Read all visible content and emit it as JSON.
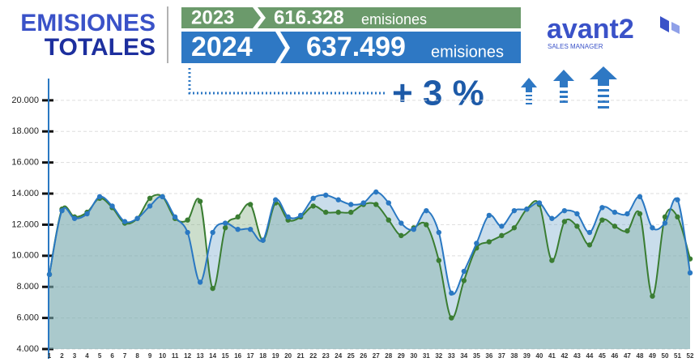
{
  "header": {
    "title_line1": "EMISIONES",
    "title_line2": "TOTALES",
    "year_prev": "2023",
    "total_prev": "616.328",
    "unit_prev": "emisiones",
    "year_curr": "2024",
    "total_curr": "637.499",
    "unit_curr": "emisiones",
    "change": "+ 3 %",
    "logo": "avant2",
    "logo_sub": "SALES MANAGER"
  },
  "chart_data": {
    "type": "area",
    "categories": [
      "1",
      "2",
      "3",
      "4",
      "5",
      "6",
      "7",
      "8",
      "9",
      "10",
      "11",
      "12",
      "13",
      "14",
      "15",
      "16",
      "17",
      "18",
      "19",
      "20",
      "21",
      "22",
      "23",
      "24",
      "25",
      "26",
      "27",
      "28",
      "29",
      "30",
      "31",
      "32",
      "33",
      "34",
      "35",
      "36",
      "37",
      "38",
      "39",
      "40",
      "41",
      "42",
      "43",
      "44",
      "45",
      "46",
      "47",
      "48",
      "49",
      "50",
      "51",
      "52"
    ],
    "series": [
      {
        "name": "2023",
        "color": "#3a7d32",
        "values": [
          8800,
          13000,
          12500,
          12800,
          13700,
          13100,
          12100,
          12400,
          13700,
          13800,
          12400,
          12300,
          13500,
          7900,
          11800,
          12500,
          13300,
          11000,
          13400,
          12300,
          12500,
          13200,
          12800,
          12800,
          12800,
          13300,
          13300,
          12300,
          11300,
          11800,
          12000,
          9700,
          6000,
          8400,
          10500,
          10900,
          11300,
          11800,
          13000,
          13300,
          9700,
          12200,
          11900,
          10700,
          12300,
          11900,
          11600,
          12700,
          7400,
          12500,
          12500,
          9800
        ]
      },
      {
        "name": "2024",
        "color": "#2a78c2",
        "values": [
          8800,
          12900,
          12400,
          12700,
          13800,
          13200,
          12200,
          12400,
          13200,
          13800,
          12500,
          11500,
          8300,
          11500,
          12100,
          11700,
          11700,
          11000,
          13600,
          12500,
          12600,
          13700,
          13900,
          13600,
          13300,
          13400,
          14100,
          13400,
          12100,
          11700,
          12900,
          11500,
          7600,
          9000,
          10800,
          12600,
          11900,
          12900,
          13000,
          13400,
          12400,
          12900,
          12700,
          11500,
          13100,
          12800,
          12700,
          13800,
          11800,
          12100,
          13600,
          8900
        ]
      }
    ],
    "ylim": [
      4000,
      21400
    ],
    "yticks": [
      {
        "value": 4000,
        "label": "4.000"
      },
      {
        "value": 6000,
        "label": "6.000"
      },
      {
        "value": 8000,
        "label": "8.000"
      },
      {
        "value": 10000,
        "label": "10.000"
      },
      {
        "value": 12000,
        "label": "12.000"
      },
      {
        "value": 14000,
        "label": "14.000"
      },
      {
        "value": 16000,
        "label": "16.000"
      },
      {
        "value": 18000,
        "label": "18.000"
      },
      {
        "value": 20000,
        "label": "20.000"
      }
    ],
    "grid": true
  }
}
